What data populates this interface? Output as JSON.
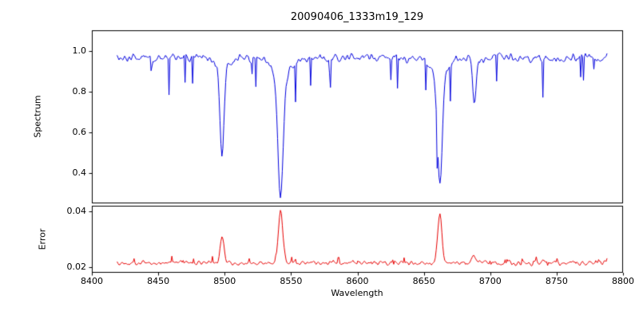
{
  "chart_data": {
    "type": "line",
    "title": "20090406_1333m19_129",
    "xlabel": "Wavelength",
    "x_axis_range": [
      8400,
      8800
    ],
    "x_ticks": [
      8400,
      8450,
      8500,
      8550,
      8600,
      8650,
      8700,
      8750,
      8800
    ],
    "x_data_range": [
      8419,
      8788
    ],
    "seed": 20090406,
    "grid": false,
    "legend": "none",
    "panels": [
      {
        "name": "spectrum",
        "ylabel": "Spectrum",
        "color": "#0000dd",
        "ylim": [
          0.25,
          1.1
        ],
        "yticks": [
          0.4,
          0.6,
          0.8,
          1.0
        ],
        "ytick_labels": [
          "0.4",
          "0.6",
          "0.8",
          "1.0"
        ],
        "continuum": 0.965,
        "noise_amplitude": 0.028,
        "absorption_lines": [
          {
            "center": 8498.0,
            "depth": 0.45,
            "width": 1.5,
            "wing_depth": 0.05,
            "wing_width": 5
          },
          {
            "center": 8542.1,
            "depth": 0.58,
            "width": 2.0,
            "wing_depth": 0.1,
            "wing_width": 7
          },
          {
            "center": 8662.1,
            "depth": 0.55,
            "width": 1.8,
            "wing_depth": 0.08,
            "wing_width": 6
          },
          {
            "center": 8688.0,
            "depth": 0.2,
            "width": 1.3,
            "wing_depth": 0.02,
            "wing_width": 3
          }
        ]
      },
      {
        "name": "error",
        "ylabel": "Error",
        "color": "#e60000",
        "ylim": [
          0.018,
          0.042
        ],
        "yticks": [
          0.02,
          0.04
        ],
        "ytick_labels": [
          "0.02",
          "0.04"
        ],
        "baseline": 0.0215,
        "noise_amplitude": 0.0011,
        "peaks": [
          {
            "center": 8498.0,
            "height": 0.0095,
            "width": 1.5
          },
          {
            "center": 8542.1,
            "height": 0.019,
            "width": 1.7
          },
          {
            "center": 8662.1,
            "height": 0.0175,
            "width": 1.6
          },
          {
            "center": 8688.0,
            "height": 0.003,
            "width": 1.2
          }
        ]
      }
    ]
  }
}
